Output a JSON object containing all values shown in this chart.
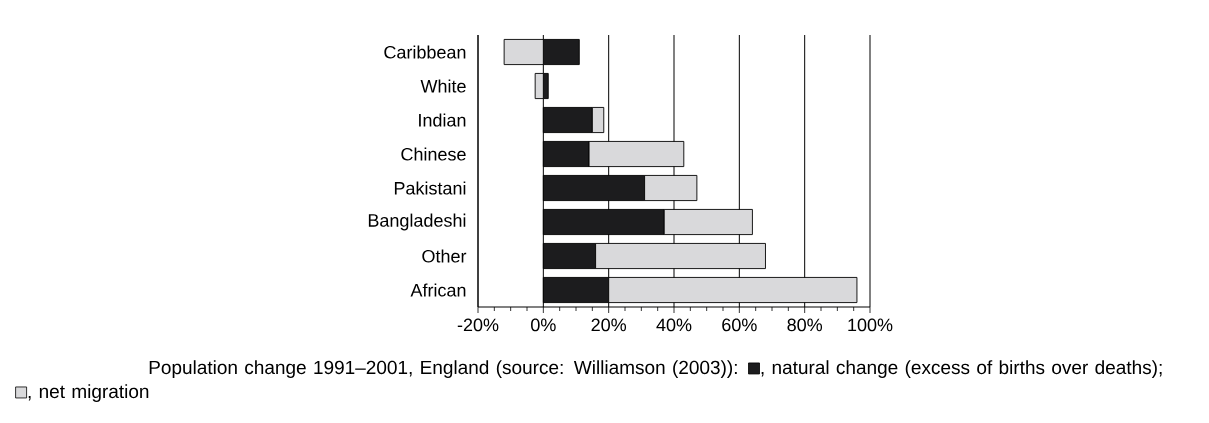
{
  "chart_data": {
    "type": "bar",
    "orientation": "horizontal",
    "categories": [
      "Caribbean",
      "White",
      "Indian",
      "Chinese",
      "Pakistani",
      "Bangladeshi",
      "Other",
      "African"
    ],
    "series": [
      {
        "name": ", natural change (excess of births over deaths);",
        "color": "#1c1c1e",
        "values": [
          11,
          1.5,
          15,
          14,
          31,
          37,
          16,
          20
        ]
      },
      {
        "name": ", net migration",
        "color": "#d9d9db",
        "values": [
          -12,
          -2.5,
          3.5,
          29,
          16,
          27,
          52,
          76
        ]
      }
    ],
    "stacked": true,
    "xlim": [
      -20,
      100
    ],
    "xticks": [
      {
        "value": -20,
        "label": "-20%"
      },
      {
        "value": 0,
        "label": "0%"
      },
      {
        "value": 20,
        "label": "20%"
      },
      {
        "value": 40,
        "label": "40%"
      },
      {
        "value": 60,
        "label": "60%"
      },
      {
        "value": 80,
        "label": "80%"
      },
      {
        "value": 100,
        "label": "100%"
      }
    ],
    "grid": "x",
    "legend": "bottom",
    "annotations": [
      "Population change 1991–2001, England (source: Williamson (2003)):"
    ]
  }
}
